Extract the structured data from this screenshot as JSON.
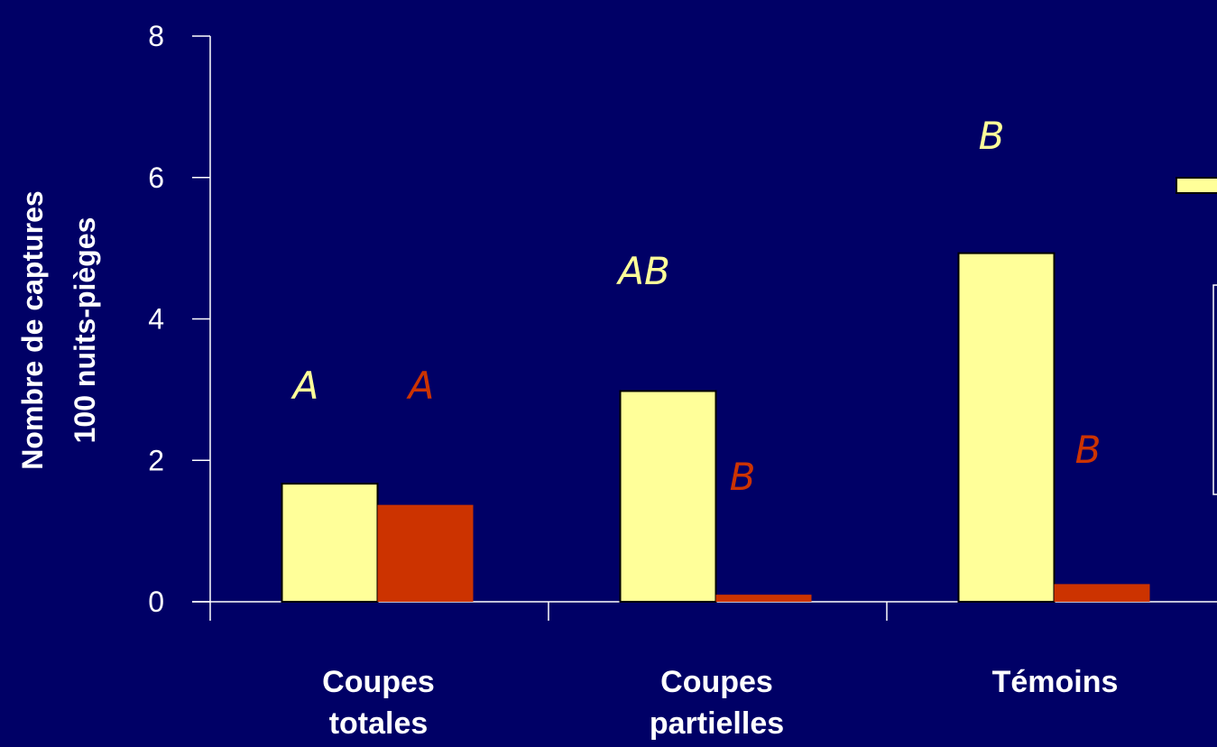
{
  "chart_data": {
    "type": "bar",
    "categories": [
      [
        "Coupes",
        "totales"
      ],
      [
        "Coupes",
        "partielles"
      ],
      [
        "Témoins"
      ]
    ],
    "series": [
      {
        "color": "#ffff99",
        "values": [
          1.67,
          2.98,
          4.93
        ],
        "letters": [
          "A",
          "AB",
          "B"
        ]
      },
      {
        "color": "#cc3300",
        "values": [
          1.37,
          0.1,
          0.25
        ],
        "letters": [
          "A",
          "B",
          "B"
        ]
      }
    ],
    "ylabel": [
      "Nombre de captures",
      "100 nuits-pièges"
    ],
    "ylim": [
      0,
      8
    ],
    "yticks": [
      0,
      2,
      4,
      6,
      8
    ],
    "grid": false,
    "colors": {
      "background": "#000066",
      "axis": "#ffffff",
      "bar_outline": "#000000",
      "text": "#ffffff"
    }
  }
}
